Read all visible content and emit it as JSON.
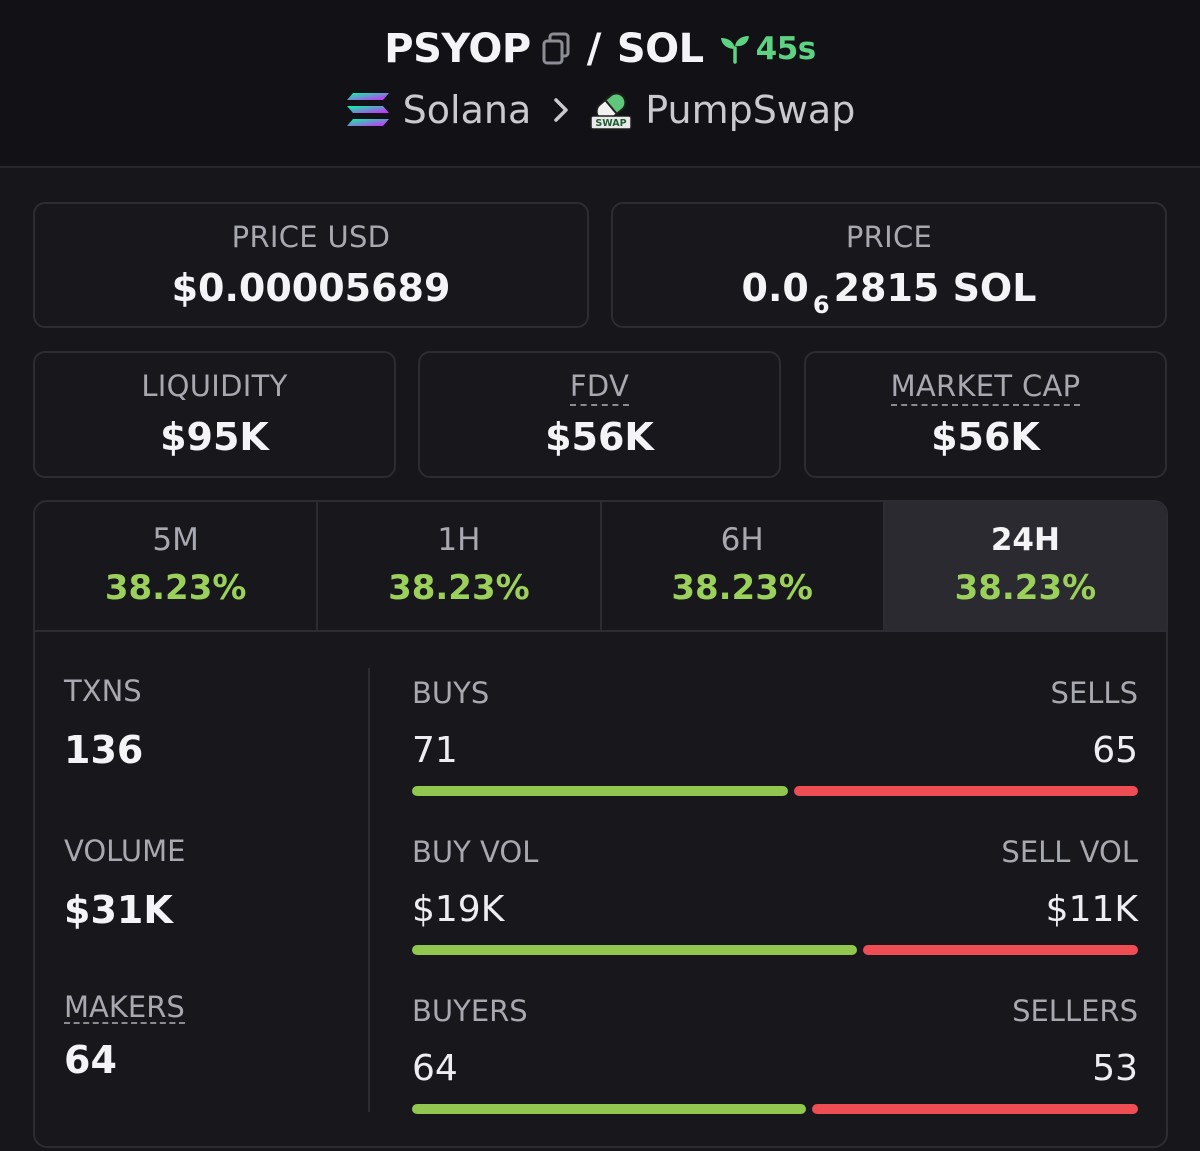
{
  "header": {
    "token": "PSYOP",
    "slash": "/",
    "quote": "SOL",
    "age": "45s",
    "chain": "Solana",
    "dex": "PumpSwap",
    "dex_logo_text": "SWAP",
    "colors": {
      "age": "#5dd283"
    }
  },
  "price_usd": {
    "label": "PRICE USD",
    "value": "$0.00005689"
  },
  "price_native": {
    "label": "PRICE",
    "prefix": "0.0",
    "zeros": "6",
    "digits": "2815",
    "unit": "SOL"
  },
  "metrics": {
    "liquidity": {
      "label": "LIQUIDITY",
      "value": "$95K"
    },
    "fdv": {
      "label": "FDV",
      "value": "$56K"
    },
    "market_cap": {
      "label": "MARKET CAP",
      "value": "$56K"
    }
  },
  "tabs": [
    {
      "label": "5M",
      "value": "38.23%",
      "active": false
    },
    {
      "label": "1H",
      "value": "38.23%",
      "active": false
    },
    {
      "label": "6H",
      "value": "38.23%",
      "active": false
    },
    {
      "label": "24H",
      "value": "38.23%",
      "active": true
    }
  ],
  "stats": {
    "txns": {
      "label": "TXNS",
      "value": "136"
    },
    "volume": {
      "label": "VOLUME",
      "value": "$31K"
    },
    "makers": {
      "label": "MAKERS",
      "value": "64"
    }
  },
  "bars": [
    {
      "left_label": "BUYS",
      "left_value": "71",
      "right_label": "SELLS",
      "right_value": "65",
      "buy_fraction": 0.522
    },
    {
      "left_label": "BUY VOL",
      "left_value": "$19K",
      "right_label": "SELL VOL",
      "right_value": "$11K",
      "buy_fraction": 0.618
    },
    {
      "left_label": "BUYERS",
      "left_value": "64",
      "right_label": "SELLERS",
      "right_value": "53",
      "buy_fraction": 0.547
    }
  ],
  "colors": {
    "positive": "#9bd15a",
    "buy_bar": "#92c74f",
    "sell_bar": "#ef4d54"
  },
  "icons": {
    "copy": "copy-icon",
    "age": "seedling-icon",
    "chain": "solana-logo-icon",
    "separator": "chevron-right-icon",
    "dex": "pumpswap-logo-icon"
  }
}
